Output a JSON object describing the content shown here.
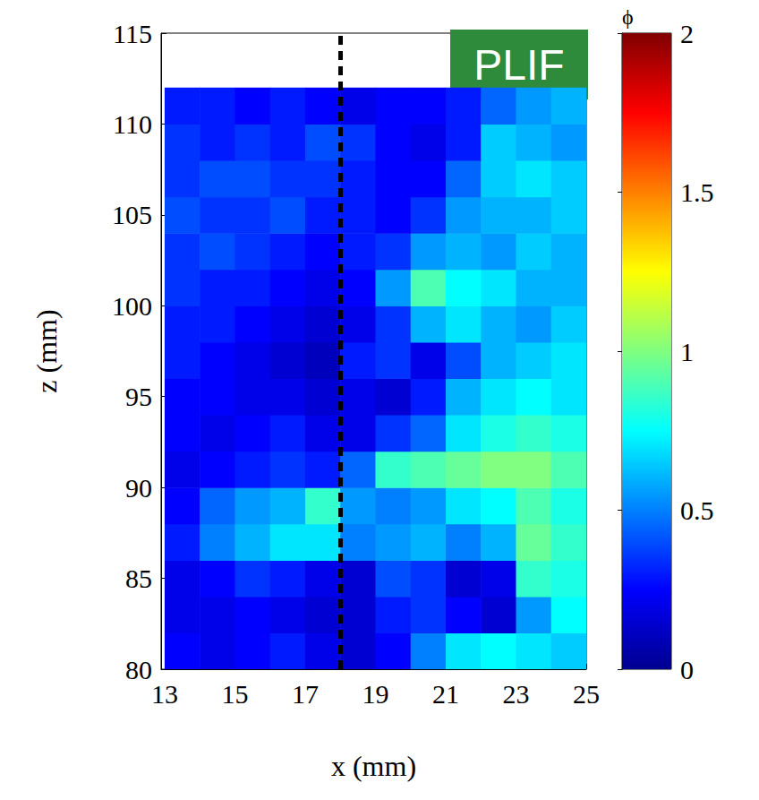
{
  "chart_data": {
    "type": "heatmap",
    "xlabel": "x (mm)",
    "ylabel": "z (mm)",
    "xlim": [
      12.9,
      25
    ],
    "xticks": [
      13,
      15,
      17,
      19,
      21,
      23,
      25
    ],
    "ylim": [
      80,
      115
    ],
    "yticks": [
      80,
      85,
      90,
      95,
      100,
      105,
      110,
      115
    ],
    "x": [
      13.5,
      14.5,
      15.5,
      16.5,
      17.5,
      18.5,
      19.5,
      20.5,
      21.5,
      22.5,
      23.5,
      24.5
    ],
    "y": [
      81,
      83,
      85,
      87,
      89,
      91,
      93,
      95,
      97,
      99,
      101,
      103,
      105,
      107,
      109,
      111
    ],
    "cells": [
      [
        0.25,
        0.2,
        0.25,
        0.3,
        0.2,
        0.15,
        0.25,
        0.5,
        0.7,
        0.75,
        0.7,
        0.65
      ],
      [
        0.2,
        0.2,
        0.25,
        0.2,
        0.15,
        0.15,
        0.3,
        0.35,
        0.25,
        0.15,
        0.55,
        0.75
      ],
      [
        0.2,
        0.25,
        0.35,
        0.3,
        0.2,
        0.15,
        0.4,
        0.35,
        0.15,
        0.2,
        0.85,
        0.8
      ],
      [
        0.3,
        0.5,
        0.6,
        0.7,
        0.7,
        0.5,
        0.55,
        0.6,
        0.5,
        0.6,
        0.95,
        0.85
      ],
      [
        0.25,
        0.45,
        0.55,
        0.6,
        0.85,
        0.55,
        0.5,
        0.55,
        0.7,
        0.75,
        0.9,
        0.8
      ],
      [
        0.2,
        0.25,
        0.3,
        0.35,
        0.3,
        0.45,
        0.85,
        0.9,
        0.95,
        1.0,
        1.0,
        0.9
      ],
      [
        0.25,
        0.2,
        0.25,
        0.3,
        0.2,
        0.2,
        0.35,
        0.45,
        0.7,
        0.8,
        0.85,
        0.8
      ],
      [
        0.25,
        0.25,
        0.2,
        0.2,
        0.15,
        0.2,
        0.15,
        0.3,
        0.6,
        0.7,
        0.75,
        0.7
      ],
      [
        0.3,
        0.25,
        0.2,
        0.15,
        0.1,
        0.3,
        0.35,
        0.2,
        0.4,
        0.6,
        0.65,
        0.7
      ],
      [
        0.3,
        0.3,
        0.25,
        0.2,
        0.15,
        0.2,
        0.35,
        0.6,
        0.7,
        0.6,
        0.55,
        0.65
      ],
      [
        0.35,
        0.3,
        0.3,
        0.25,
        0.2,
        0.25,
        0.55,
        0.9,
        0.75,
        0.7,
        0.6,
        0.6
      ],
      [
        0.35,
        0.4,
        0.35,
        0.3,
        0.25,
        0.3,
        0.35,
        0.55,
        0.6,
        0.55,
        0.65,
        0.6
      ],
      [
        0.4,
        0.35,
        0.35,
        0.4,
        0.3,
        0.3,
        0.25,
        0.35,
        0.55,
        0.6,
        0.6,
        0.65
      ],
      [
        0.35,
        0.4,
        0.4,
        0.35,
        0.35,
        0.3,
        0.25,
        0.25,
        0.45,
        0.65,
        0.7,
        0.65
      ],
      [
        0.35,
        0.3,
        0.35,
        0.3,
        0.4,
        0.35,
        0.25,
        0.2,
        0.3,
        0.65,
        0.6,
        0.55
      ],
      [
        0.3,
        0.3,
        0.25,
        0.3,
        0.25,
        0.2,
        0.25,
        0.25,
        0.3,
        0.45,
        0.55,
        0.6
      ]
    ],
    "colorbar": {
      "label": "ϕ",
      "range": [
        0,
        2
      ],
      "ticks": [
        0,
        0.5,
        1,
        1.5,
        2
      ]
    },
    "annotations": [
      {
        "text": "PLIF"
      }
    ],
    "reference_lines": [
      {
        "x": 18,
        "line_style": "dashed"
      }
    ],
    "grid": false
  }
}
